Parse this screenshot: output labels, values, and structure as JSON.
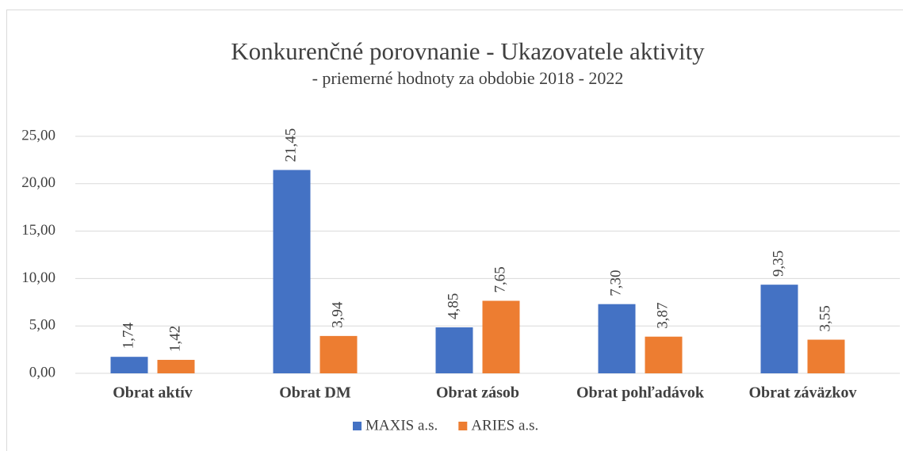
{
  "chart_data": {
    "type": "bar",
    "title": "Konkurenčné porovnanie - Ukazovatele aktivity",
    "subtitle": "- priemerné hodnoty za obdobie 2018 - 2022",
    "categories": [
      "Obrat aktív",
      "Obrat DM",
      "Obrat zásob",
      "Obrat pohľadávok",
      "Obrat záväzkov"
    ],
    "series": [
      {
        "name": "MAXIS a.s.",
        "color": "#4472c4",
        "values": [
          1.74,
          21.45,
          4.85,
          7.3,
          9.35
        ],
        "value_labels": [
          "1,74",
          "21,45",
          "4,85",
          "7,30",
          "9,35"
        ]
      },
      {
        "name": "ARIES a.s.",
        "color": "#ed7d31",
        "values": [
          1.42,
          3.94,
          7.65,
          3.87,
          3.55
        ],
        "value_labels": [
          "1,42",
          "3,94",
          "7,65",
          "3,87",
          "3,55"
        ]
      }
    ],
    "ylim": [
      0,
      25
    ],
    "yticks": [
      {
        "value": 0,
        "label": "0,00"
      },
      {
        "value": 5,
        "label": "5,00"
      },
      {
        "value": 10,
        "label": "10,00"
      },
      {
        "value": 15,
        "label": "15,00"
      },
      {
        "value": 20,
        "label": "20,00"
      },
      {
        "value": 25,
        "label": "25,00"
      }
    ],
    "grid": true,
    "legend": "bottom"
  }
}
